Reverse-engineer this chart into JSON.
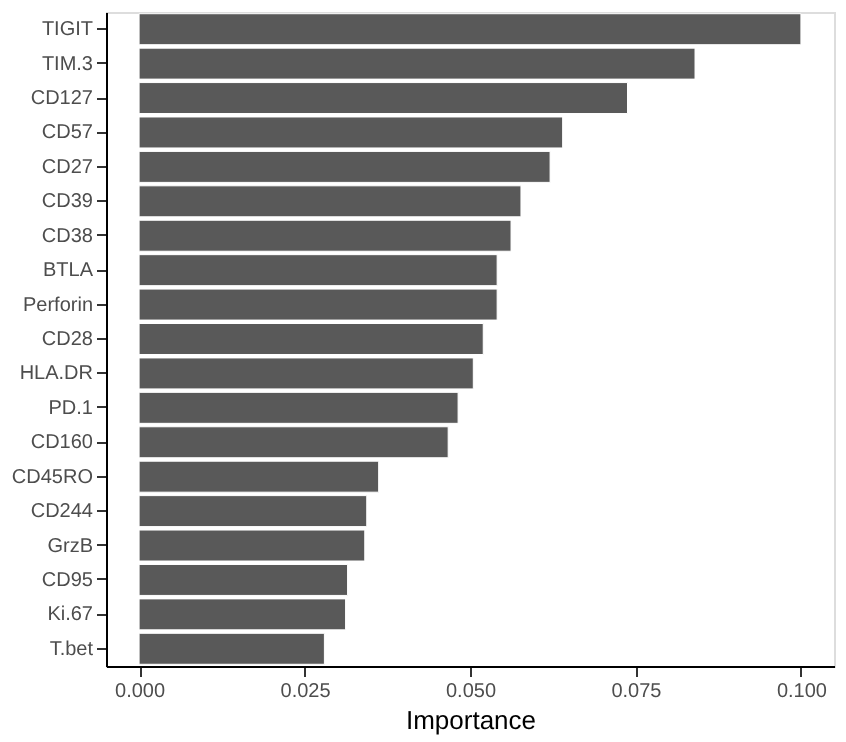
{
  "chart_data": {
    "type": "bar",
    "orientation": "horizontal",
    "xlabel": "Importance",
    "categories": [
      "TIGIT",
      "TIM.3",
      "CD127",
      "CD57",
      "CD27",
      "CD39",
      "CD38",
      "BTLA",
      "Perforin",
      "CD28",
      "HLA.DR",
      "PD.1",
      "CD160",
      "CD45RO",
      "CD244",
      "GrzB",
      "CD95",
      "Ki.67",
      "T.bet"
    ],
    "values": [
      0.1,
      0.084,
      0.0738,
      0.064,
      0.0621,
      0.0577,
      0.0562,
      0.0541,
      0.0541,
      0.052,
      0.0505,
      0.0482,
      0.0467,
      0.0362,
      0.0344,
      0.0341,
      0.0315,
      0.0312,
      0.028
    ],
    "color": "#595959",
    "xlim": [
      -0.005,
      0.105
    ],
    "xticks": [
      {
        "value": 0,
        "label": "0.000"
      },
      {
        "value": 0.025,
        "label": "0.025"
      },
      {
        "value": 0.05,
        "label": "0.050"
      },
      {
        "value": 0.075,
        "label": "0.075"
      },
      {
        "value": 0.1,
        "label": "0.100"
      }
    ],
    "grid": false
  }
}
